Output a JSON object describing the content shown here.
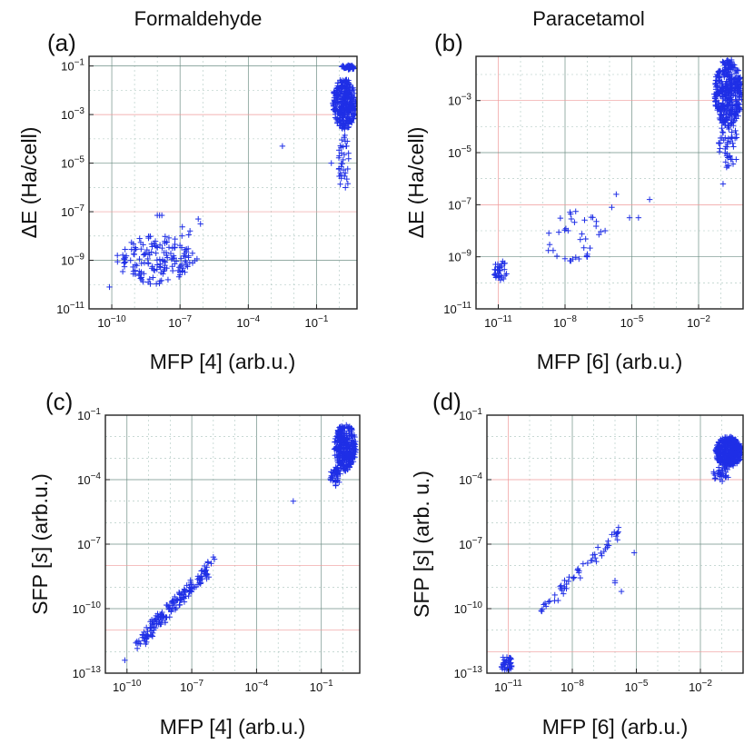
{
  "titles": {
    "left": "Formaldehyde",
    "right": "Paracetamol"
  },
  "colors": {
    "marker": "#1f2fe6",
    "grid": "#6f8f86",
    "grid_highlight": "#ef9a9a"
  },
  "chart_data": [
    {
      "id": "a",
      "letter": "(a)",
      "type": "scatter",
      "marker": "plus",
      "xlabel": "MFP [4] (arb.u.)",
      "ylabel": "ΔE (Ha/cell)",
      "xscale": "log",
      "yscale": "log",
      "xlim": [
        1e-11,
        6
      ],
      "ylim": [
        1e-11,
        0.25
      ],
      "xticks": [
        -10,
        -7,
        -4,
        -1
      ],
      "yticks": [
        -11,
        -9,
        -7,
        -5,
        -3,
        -1
      ],
      "red_y": [
        -3,
        -7
      ],
      "red_x": [],
      "grid": true,
      "clusters": [
        {
          "x": [
            -9.8,
            -6.3
          ],
          "y": [
            -10.0,
            -8.0
          ],
          "n": 140,
          "seed": 11
        },
        {
          "x": [
            -7.9,
            -6.0
          ],
          "y": [
            -9.6,
            -7.6
          ],
          "n": 20,
          "seed": 12
        },
        {
          "x": [
            -0.3,
            0.75
          ],
          "y": [
            -3.6,
            -1.5
          ],
          "n": 320,
          "seed": 13
        },
        {
          "x": [
            -0.1,
            0.5
          ],
          "y": [
            -6.2,
            -3.6
          ],
          "n": 35,
          "seed": 14
        },
        {
          "x": [
            0.05,
            0.7
          ],
          "y": [
            -1.15,
            -0.95
          ],
          "n": 40,
          "seed": 15
        }
      ],
      "points": [
        [
          -2.5,
          -4.3
        ],
        [
          -8.0,
          -7.15
        ],
        [
          -7.9,
          -7.15
        ],
        [
          -7.8,
          -7.15
        ],
        [
          -6.1,
          -7.5
        ],
        [
          -6.2,
          -7.3
        ],
        [
          -10.1,
          -10.1
        ],
        [
          -7.0,
          -9.6
        ],
        [
          -0.35,
          -5.0
        ]
      ]
    },
    {
      "id": "b",
      "letter": "(b)",
      "type": "scatter",
      "marker": "plus",
      "xlabel": "MFP [6] (arb.u.)",
      "ylabel": "ΔE (Ha/cell)",
      "xscale": "log",
      "yscale": "log",
      "xlim": [
        1e-12,
        1
      ],
      "ylim": [
        1e-11,
        0.05
      ],
      "xticks": [
        -11,
        -8,
        -5,
        -2
      ],
      "yticks": [
        -11,
        -9,
        -7,
        -5,
        -3
      ],
      "red_y": [
        -7,
        -3
      ],
      "red_x": [
        -11
      ],
      "grid": true,
      "clusters": [
        {
          "x": [
            -11.2,
            -10.6
          ],
          "y": [
            -10.0,
            -9.1
          ],
          "n": 35,
          "seed": 21
        },
        {
          "x": [
            -9.0,
            -6.2
          ],
          "y": [
            -9.2,
            -7.2
          ],
          "n": 35,
          "seed": 22
        },
        {
          "x": [
            -1.3,
            -0.05
          ],
          "y": [
            -4.0,
            -1.4
          ],
          "n": 380,
          "seed": 23
        },
        {
          "x": [
            -1.1,
            -0.2
          ],
          "y": [
            -5.6,
            -3.8
          ],
          "n": 45,
          "seed": 24
        }
      ],
      "points": [
        [
          -5.7,
          -6.6
        ],
        [
          -4.7,
          -7.5
        ],
        [
          -5.1,
          -7.5
        ],
        [
          -4.2,
          -6.8
        ],
        [
          -5.9,
          -7.1
        ],
        [
          -7.0,
          -9.0
        ],
        [
          -7.0,
          -8.9
        ],
        [
          -6.2,
          -8.0
        ],
        [
          -0.9,
          -6.2
        ]
      ]
    },
    {
      "id": "c",
      "letter": "(c)",
      "type": "scatter",
      "marker": "plus",
      "xlabel": "MFP [4] (arb.u.)",
      "ylabel": "SFP [s] (arb.u.)",
      "ylabel_italic": "s",
      "xscale": "log",
      "yscale": "log",
      "xlim": [
        1e-11,
        6
      ],
      "ylim": [
        1e-13,
        0.1
      ],
      "xticks": [
        -10,
        -7,
        -4,
        -1
      ],
      "yticks": [
        -13,
        -10,
        -7,
        -4,
        -1
      ],
      "red_y": [
        -8,
        -11
      ],
      "red_x": [],
      "grid": true,
      "diag": {
        "x": [
          -9.6,
          -6.2
        ],
        "slope": 1.05,
        "intercept": -1.6,
        "spread": 0.55,
        "n": 170,
        "seed": 31
      },
      "clusters": [
        {
          "x": [
            -0.4,
            0.6
          ],
          "y": [
            -3.6,
            -1.4
          ],
          "n": 320,
          "seed": 32
        },
        {
          "x": [
            -0.6,
            -0.1
          ],
          "y": [
            -4.3,
            -3.4
          ],
          "n": 40,
          "seed": 33
        }
      ],
      "points": [
        [
          -2.3,
          -5.0
        ],
        [
          -10.1,
          -12.4
        ],
        [
          -6.0,
          -7.6
        ],
        [
          -6.1,
          -7.9
        ],
        [
          -5.95,
          -7.7
        ]
      ]
    },
    {
      "id": "d",
      "letter": "(d)",
      "type": "scatter",
      "marker": "plus",
      "xlabel": "MFP [6] (arb.u.)",
      "ylabel": "SFP [s] (arb. u.)",
      "ylabel_italic": "s",
      "xscale": "log",
      "yscale": "log",
      "xlim": [
        1e-12,
        1
      ],
      "ylim": [
        1e-13,
        0.1
      ],
      "xticks": [
        -11,
        -8,
        -5,
        -2
      ],
      "yticks": [
        -13,
        -10,
        -7,
        -4,
        -1
      ],
      "red_y": [
        -4,
        -12
      ],
      "red_x": [
        -11
      ],
      "grid": true,
      "diag": {
        "x": [
          -9.5,
          -5.8
        ],
        "slope": 1.0,
        "intercept": -0.6,
        "spread": 0.5,
        "n": 55,
        "seed": 41
      },
      "clusters": [
        {
          "x": [
            -11.4,
            -10.8
          ],
          "y": [
            -12.9,
            -12.2
          ],
          "n": 40,
          "seed": 42
        },
        {
          "x": [
            -1.3,
            -0.05
          ],
          "y": [
            -3.4,
            -2.0
          ],
          "n": 380,
          "seed": 43
        },
        {
          "x": [
            -1.4,
            -0.6
          ],
          "y": [
            -4.1,
            -3.4
          ],
          "n": 30,
          "seed": 44
        }
      ],
      "points": [
        [
          -5.1,
          -7.4
        ],
        [
          -6.0,
          -8.8
        ],
        [
          -5.7,
          -9.2
        ],
        [
          -6.0,
          -8.7
        ]
      ]
    }
  ]
}
